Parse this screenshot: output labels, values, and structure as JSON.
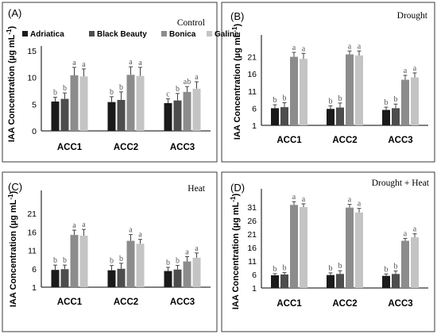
{
  "series_colors": [
    "#1a1a1a",
    "#4d4d4d",
    "#8c8c8c",
    "#c4c4c4"
  ],
  "legend": [
    "Adriatica",
    "Black Beauty",
    "Bonica",
    "Galine"
  ],
  "ylabel": "IAA Concentration (µg mL",
  "ylabel_sup": "-1",
  "ylabel_close": ")",
  "chart_data": [
    {
      "panel_label": "(A)",
      "title": "Control",
      "type": "bar",
      "categories": [
        "ACC1",
        "ACC2",
        "ACC3"
      ],
      "ylim": [
        0,
        15
      ],
      "yticks": [
        0,
        5,
        10,
        15
      ],
      "series": [
        {
          "name": "Adriatica",
          "values": [
            5.5,
            5.4,
            5.2
          ],
          "errors": [
            0.8,
            1.0,
            0.8
          ],
          "letters": [
            "b",
            "b",
            "c"
          ]
        },
        {
          "name": "Black Beauty",
          "values": [
            6.0,
            5.8,
            5.7
          ],
          "errors": [
            1.1,
            1.5,
            1.3
          ],
          "letters": [
            "b",
            "b",
            "b"
          ]
        },
        {
          "name": "Bonica",
          "values": [
            10.4,
            10.5,
            7.3
          ],
          "errors": [
            1.5,
            1.5,
            1.0
          ],
          "letters": [
            "a",
            "a",
            "ab"
          ]
        },
        {
          "name": "Galine",
          "values": [
            10.2,
            10.3,
            7.9
          ],
          "errors": [
            1.4,
            1.6,
            1.3
          ],
          "letters": [
            "a",
            "a",
            "a"
          ]
        }
      ]
    },
    {
      "panel_label": "(B)",
      "title": "Drought",
      "type": "bar",
      "categories": [
        "ACC1",
        "ACC2",
        "ACC3"
      ],
      "ylim": [
        1,
        26
      ],
      "yticks": [
        1,
        6,
        11,
        16,
        21
      ],
      "series": [
        {
          "name": "Adriatica",
          "values": [
            6.0,
            5.8,
            5.5
          ],
          "errors": [
            1.0,
            0.9,
            0.8
          ],
          "letters": [
            "b",
            "b",
            "b"
          ]
        },
        {
          "name": "Black Beauty",
          "values": [
            6.3,
            6.2,
            6.0
          ],
          "errors": [
            1.3,
            1.3,
            1.2
          ],
          "letters": [
            "b",
            "b",
            "b"
          ]
        },
        {
          "name": "Bonica",
          "values": [
            21.0,
            21.7,
            14.3
          ],
          "errors": [
            1.3,
            1.0,
            1.3
          ],
          "letters": [
            "a",
            "a",
            "a"
          ]
        },
        {
          "name": "Galine",
          "values": [
            20.4,
            21.4,
            15.0
          ],
          "errors": [
            1.6,
            1.3,
            1.3
          ],
          "letters": [
            "a",
            "a",
            "a"
          ]
        }
      ]
    },
    {
      "panel_label": "(C)",
      "title": "Heat",
      "type": "bar",
      "categories": [
        "ACC1",
        "ACC2",
        "ACC3"
      ],
      "ylim": [
        1,
        26
      ],
      "yticks": [
        1,
        6,
        11,
        16,
        21
      ],
      "series": [
        {
          "name": "Adriatica",
          "values": [
            5.7,
            5.6,
            5.4
          ],
          "errors": [
            1.3,
            1.3,
            1.0
          ],
          "letters": [
            "b",
            "b",
            "b"
          ]
        },
        {
          "name": "Black Beauty",
          "values": [
            5.9,
            6.0,
            5.8
          ],
          "errors": [
            1.1,
            1.5,
            1.1
          ],
          "letters": [
            "b",
            "b",
            "b"
          ]
        },
        {
          "name": "Bonica",
          "values": [
            15.2,
            13.6,
            8.0
          ],
          "errors": [
            1.3,
            1.7,
            1.3
          ],
          "letters": [
            "a",
            "a",
            "a"
          ]
        },
        {
          "name": "Galine",
          "values": [
            15.0,
            12.8,
            9.0
          ],
          "errors": [
            1.7,
            1.2,
            1.3
          ],
          "letters": [
            "a",
            "a",
            "a"
          ]
        }
      ]
    },
    {
      "panel_label": "(D)",
      "title": "Drought + Heat",
      "type": "bar",
      "categories": [
        "ACC1",
        "ACC2",
        "ACC3"
      ],
      "ylim": [
        1,
        36
      ],
      "yticks": [
        1,
        6,
        11,
        16,
        21,
        26,
        31
      ],
      "series": [
        {
          "name": "Adriatica",
          "values": [
            5.7,
            5.8,
            5.5
          ],
          "errors": [
            0.6,
            0.8,
            0.7
          ],
          "letters": [
            "b",
            "b",
            "b"
          ]
        },
        {
          "name": "Black Beauty",
          "values": [
            6.0,
            6.2,
            6.2
          ],
          "errors": [
            0.7,
            1.2,
            1.1
          ],
          "letters": [
            "b",
            "b",
            "b"
          ]
        },
        {
          "name": "Bonica",
          "values": [
            31.8,
            30.8,
            18.5
          ],
          "errors": [
            1.2,
            1.2,
            0.9
          ],
          "letters": [
            "a",
            "a",
            "a"
          ]
        },
        {
          "name": "Galine",
          "values": [
            31.0,
            29.0,
            19.8
          ],
          "errors": [
            1.2,
            1.5,
            1.3
          ],
          "letters": [
            "a",
            "a",
            "a"
          ]
        }
      ]
    }
  ]
}
